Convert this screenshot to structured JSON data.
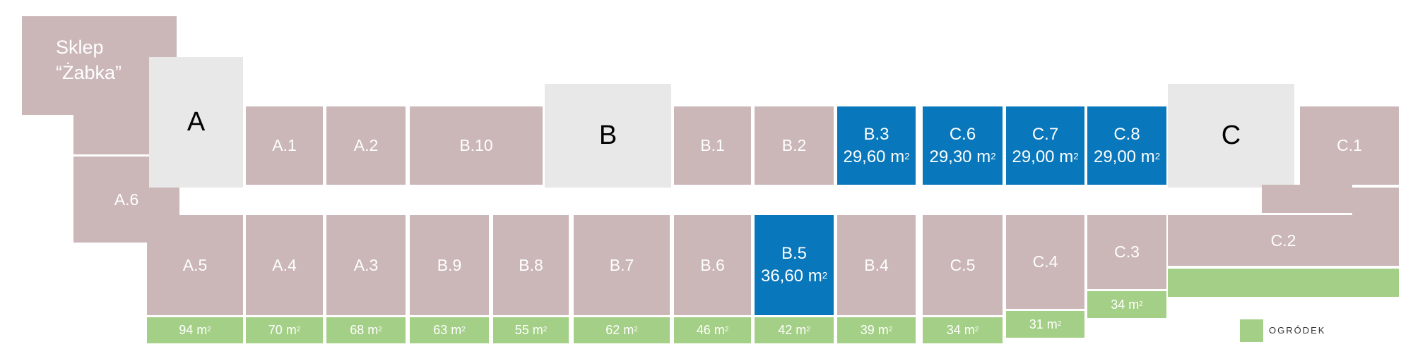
{
  "shop": {
    "line1": "Sklep",
    "line2": "“Żabka”"
  },
  "cores": {
    "a": "A",
    "b": "B",
    "c": "C"
  },
  "units": {
    "a1": "A.1",
    "a2": "A.2",
    "b10": "B.10",
    "b1": "B.1",
    "b2": "B.2",
    "c1": "C.1",
    "a6": "A.6",
    "a5": "A.5",
    "a4": "A.4",
    "a3": "A.3",
    "b9": "B.9",
    "b8": "B.8",
    "b7": "B.7",
    "b6": "B.6",
    "b4": "B.4",
    "c5": "C.5",
    "c4": "C.4",
    "c3": "C.3",
    "c2": "C.2"
  },
  "highlighted": {
    "b3": {
      "name": "B.3",
      "area": "29,60 m"
    },
    "c6": {
      "name": "C.6",
      "area": "29,30 m"
    },
    "c7": {
      "name": "C.7",
      "area": "29,00 m"
    },
    "c8": {
      "name": "C.8",
      "area": "29,00 m"
    },
    "b5": {
      "name": "B.5",
      "area": "36,60 m"
    }
  },
  "superscript": "2",
  "gardens": {
    "a5": "94 m",
    "a4": "70 m",
    "a3": "68 m",
    "b9": "63 m",
    "b8": "55 m",
    "b7": "62 m",
    "b6": "46 m",
    "b5": "42 m",
    "b4": "39 m",
    "c5": "34 m",
    "c4": "31 m",
    "c3": "34 m"
  },
  "legend": {
    "label": "OGRÓDEK"
  },
  "colors": {
    "unit": "#cbb6b8",
    "highlighted": "#0877bb",
    "core": "#e8e8e8",
    "garden": "#a4cf86"
  }
}
